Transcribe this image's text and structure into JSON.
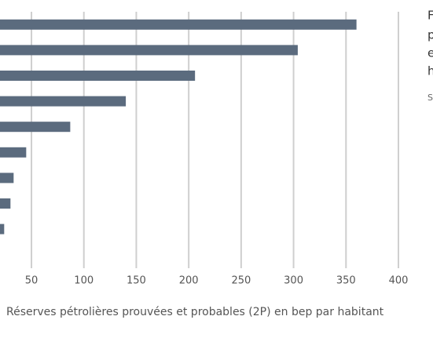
{
  "chart_data": {
    "type": "bar",
    "orientation": "horizontal",
    "x_label": "Réserves pétrolières prouvées et probables (2P) en bep par habitant",
    "categories": [
      null,
      null,
      null,
      null,
      null,
      null,
      null,
      null,
      null
    ],
    "values": [
      360,
      304,
      206,
      140,
      87,
      45,
      33,
      30,
      24
    ],
    "color": "#5b6b7e",
    "xlim": [
      0,
      400
    ],
    "xticks": [
      50,
      100,
      150,
      200,
      250,
      300,
      350,
      400
    ],
    "grid": true,
    "side_text": [
      "F",
      "p",
      "e",
      "h",
      "S"
    ]
  }
}
